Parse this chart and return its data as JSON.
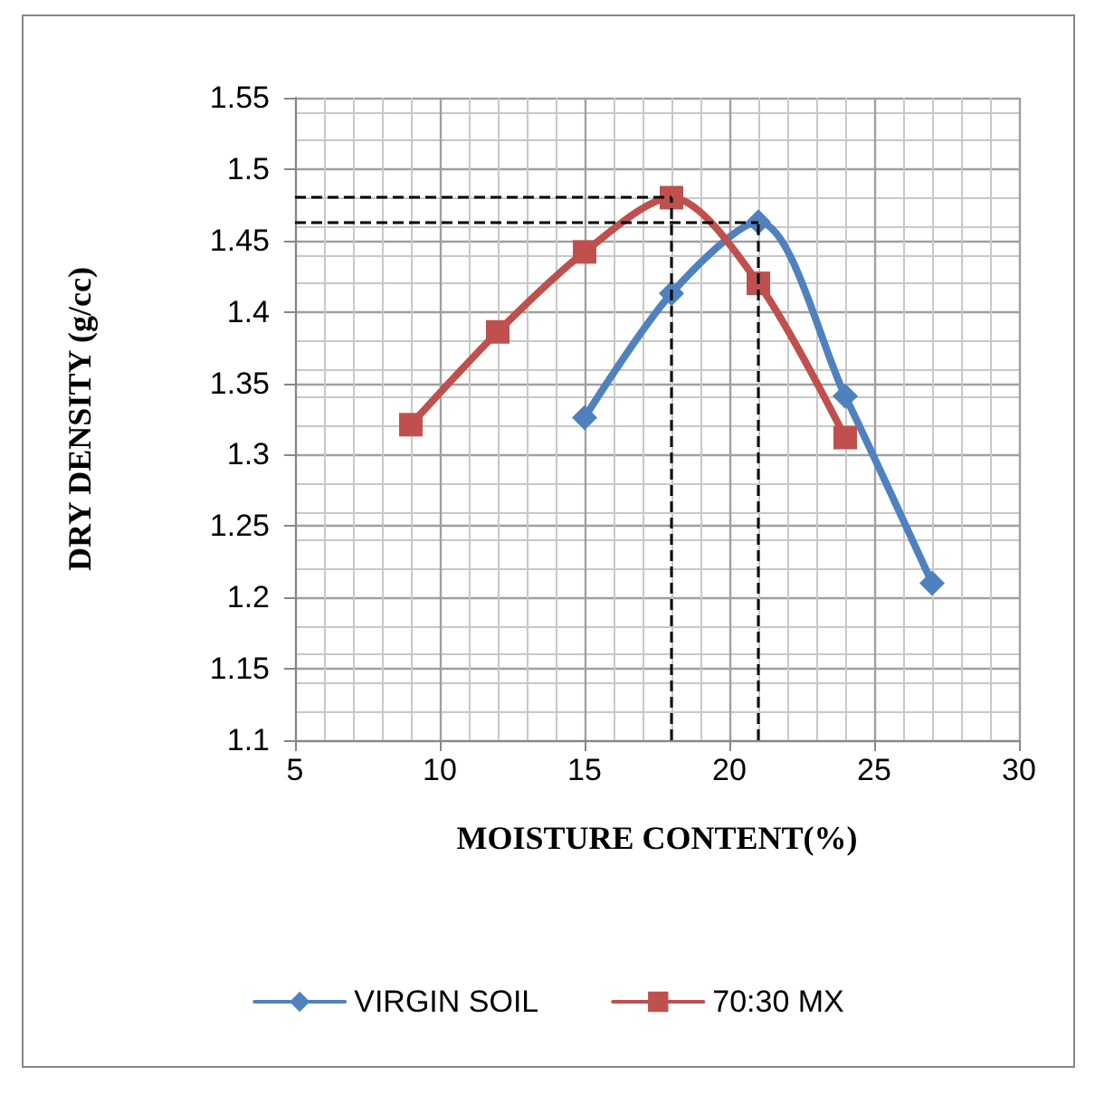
{
  "chart_data": {
    "type": "line",
    "xlabel": "MOISTURE CONTENT(%)",
    "ylabel": "DRY DENSITY (g/cc)",
    "xlim": [
      5,
      30
    ],
    "xticks": [
      5,
      10,
      15,
      20,
      25,
      30
    ],
    "ylim": [
      1.1,
      1.55
    ],
    "yticks": [
      1.1,
      1.15,
      1.2,
      1.25,
      1.3,
      1.35,
      1.4,
      1.45,
      1.5,
      1.55
    ],
    "grid": true,
    "legend": "bottom",
    "series": [
      {
        "name": "VIRGIN SOIL",
        "color": "#4f81bd",
        "marker": "diamond",
        "x": [
          15,
          18,
          21,
          24,
          27
        ],
        "values": [
          1.326,
          1.413,
          1.463,
          1.341,
          1.21
        ]
      },
      {
        "name": "70:30 MX",
        "color": "#c0504d",
        "marker": "square",
        "x": [
          9,
          12,
          15,
          18,
          21,
          24
        ],
        "values": [
          1.321,
          1.386,
          1.442,
          1.48,
          1.42,
          1.312
        ]
      }
    ],
    "ref_lines": [
      {
        "axis": "y",
        "value": 1.48,
        "line_style": "dashed",
        "color": "#000000"
      },
      {
        "axis": "y",
        "value": 1.463,
        "line_style": "dashed",
        "color": "#000000"
      },
      {
        "axis": "x",
        "value": 18,
        "line_style": "dashed",
        "color": "#000000"
      },
      {
        "axis": "x",
        "value": 21,
        "line_style": "dashed",
        "color": "#000000"
      }
    ]
  }
}
